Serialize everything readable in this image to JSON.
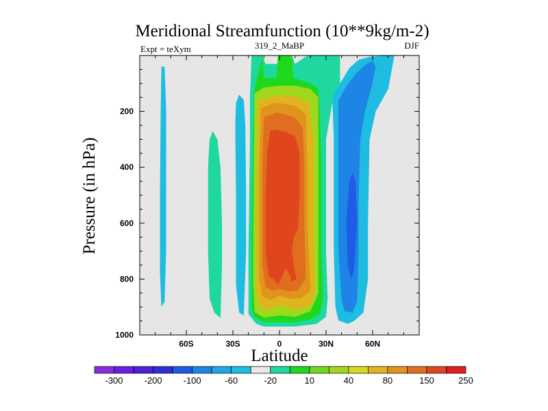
{
  "chart_data": {
    "type": "contour",
    "title": "Meridional Streamfunction (10**9kg/m-2)",
    "left_string": "Expt = teXym",
    "center_string": "319_2_MaBP",
    "right_string": "DJF",
    "xlabel": "Latitude",
    "ylabel": "Pressure (in hPa)",
    "x_range": [
      -90,
      90
    ],
    "y_range": [
      1000,
      0
    ],
    "y_direction": "inverted",
    "x_ticks": [
      {
        "value": -60,
        "label": "60S"
      },
      {
        "value": -30,
        "label": "30S"
      },
      {
        "value": 0,
        "label": "0"
      },
      {
        "value": 30,
        "label": "30N"
      },
      {
        "value": 60,
        "label": "60N"
      }
    ],
    "y_ticks": [
      {
        "value": 200,
        "label": "200"
      },
      {
        "value": 400,
        "label": "400"
      },
      {
        "value": 600,
        "label": "600"
      },
      {
        "value": 800,
        "label": "800"
      },
      {
        "value": 1000,
        "label": "1000"
      }
    ],
    "background_color": "#e6e6e6",
    "colorbar": {
      "colors": [
        "#8a2be2",
        "#6a1ee6",
        "#4f1fe0",
        "#2a2fd8",
        "#1e5ce6",
        "#1e84e6",
        "#1ea8e6",
        "#1ebce0",
        "#e8e8e8",
        "#1ed8a0",
        "#1ed81e",
        "#6ed81e",
        "#a0d81e",
        "#d8d81e",
        "#e0b41e",
        "#e0941e",
        "#e06e1e",
        "#e0461e",
        "#e01e1e"
      ],
      "labels": [
        "-300",
        "-200",
        "-100",
        "-60",
        "-20",
        "10",
        "40",
        "80",
        "150",
        "250"
      ]
    },
    "filled_regions": [
      {
        "level": "-20",
        "color": "#1ebce0",
        "polygon": [
          [
            -76,
            40
          ],
          [
            -74,
            40
          ],
          [
            -73,
            200
          ],
          [
            -73,
            500
          ],
          [
            -73,
            700
          ],
          [
            -74,
            880
          ],
          [
            -76,
            900
          ],
          [
            -77,
            780
          ],
          [
            -77,
            500
          ],
          [
            -76.5,
            200
          ]
        ]
      },
      {
        "level": "10",
        "color": "#1ed8a0",
        "polygon": [
          [
            -43,
            270
          ],
          [
            -40,
            300
          ],
          [
            -38,
            400
          ],
          [
            -37,
            600
          ],
          [
            -37,
            750
          ],
          [
            -38,
            940
          ],
          [
            -42,
            920
          ],
          [
            -45,
            870
          ],
          [
            -46,
            700
          ],
          [
            -46,
            400
          ],
          [
            -45,
            300
          ]
        ]
      },
      {
        "level": "-20",
        "color": "#1ebce0",
        "polygon": [
          [
            -26,
            140
          ],
          [
            -23,
            160
          ],
          [
            -22,
            250
          ],
          [
            -21.5,
            500
          ],
          [
            -21.5,
            700
          ],
          [
            -23,
            930
          ],
          [
            -26,
            920
          ],
          [
            -28,
            820
          ],
          [
            -28,
            500
          ],
          [
            -28.5,
            250
          ],
          [
            -28,
            170
          ]
        ]
      },
      {
        "level": "10",
        "color": "#1ed8a0",
        "polygon": [
          [
            -18,
            0
          ],
          [
            -11,
            0
          ],
          [
            -9,
            30
          ],
          [
            3,
            30
          ],
          [
            5,
            0
          ],
          [
            8,
            0
          ],
          [
            10,
            30
          ],
          [
            18,
            0
          ],
          [
            39,
            0
          ],
          [
            39,
            150
          ],
          [
            34,
            170
          ],
          [
            30,
            300
          ],
          [
            30,
            700
          ],
          [
            31,
            870
          ],
          [
            30,
            935
          ],
          [
            24,
            960
          ],
          [
            10,
            970
          ],
          [
            -10,
            970
          ],
          [
            -15,
            960
          ],
          [
            -20,
            925
          ],
          [
            -20,
            700
          ],
          [
            -19,
            300
          ],
          [
            -19,
            150
          ]
        ]
      },
      {
        "level": "40",
        "color": "#1ed81e",
        "polygon": [
          [
            -11,
            0
          ],
          [
            -10,
            80
          ],
          [
            -2,
            80
          ],
          [
            -1,
            0
          ],
          [
            8,
            0
          ],
          [
            9,
            80
          ],
          [
            20,
            100
          ],
          [
            25,
            120
          ],
          [
            26,
            200
          ],
          [
            27,
            400
          ],
          [
            27,
            700
          ],
          [
            28,
            870
          ],
          [
            26,
            925
          ],
          [
            20,
            945
          ],
          [
            10,
            955
          ],
          [
            -10,
            955
          ],
          [
            -16,
            935
          ],
          [
            -18,
            905
          ],
          [
            -18,
            700
          ],
          [
            -17,
            300
          ],
          [
            -16,
            120
          ]
        ]
      },
      {
        "level": "80",
        "color": "#a0d81e",
        "polygon": [
          [
            -16,
            135
          ],
          [
            -10,
            115
          ],
          [
            0,
            108
          ],
          [
            10,
            108
          ],
          [
            20,
            120
          ],
          [
            25,
            150
          ],
          [
            25,
            400
          ],
          [
            25,
            850
          ],
          [
            20,
            915
          ],
          [
            10,
            935
          ],
          [
            0,
            930
          ],
          [
            -10,
            938
          ],
          [
            -16,
            918
          ],
          [
            -17,
            800
          ],
          [
            -16.5,
            400
          ]
        ]
      },
      {
        "level": "150",
        "color": "#e0b41e",
        "polygon": [
          [
            -14,
            160
          ],
          [
            -6,
            150
          ],
          [
            0,
            145
          ],
          [
            10,
            145
          ],
          [
            19,
            170
          ],
          [
            22,
            300
          ],
          [
            22,
            600
          ],
          [
            23,
            850
          ],
          [
            20,
            895
          ],
          [
            10,
            910
          ],
          [
            5,
            898
          ],
          [
            0,
            895
          ],
          [
            -8,
            910
          ],
          [
            -13,
            895
          ],
          [
            -15,
            850
          ],
          [
            -14.5,
            400
          ]
        ]
      },
      {
        "level": "200",
        "color": "#e0941e",
        "polygon": [
          [
            -12,
            190
          ],
          [
            -4,
            170
          ],
          [
            0,
            170
          ],
          [
            10,
            180
          ],
          [
            17,
            210
          ],
          [
            18,
            400
          ],
          [
            18,
            600
          ],
          [
            20,
            840
          ],
          [
            14,
            868
          ],
          [
            8,
            872
          ],
          [
            0,
            860
          ],
          [
            -6,
            875
          ],
          [
            -11,
            862
          ],
          [
            -13,
            800
          ],
          [
            -13,
            400
          ]
        ]
      },
      {
        "level": "250",
        "color": "#e06e1e",
        "polygon": [
          [
            -10,
            220
          ],
          [
            -2,
            205
          ],
          [
            3,
            210
          ],
          [
            10,
            222
          ],
          [
            15,
            260
          ],
          [
            16,
            400
          ],
          [
            16,
            600
          ],
          [
            17,
            800
          ],
          [
            12,
            840
          ],
          [
            6,
            845
          ],
          [
            0,
            835
          ],
          [
            -5,
            840
          ],
          [
            -9,
            828
          ],
          [
            -11,
            750
          ],
          [
            -11,
            400
          ],
          [
            -10.5,
            300
          ]
        ]
      },
      {
        "level": "300",
        "color": "#e0461e",
        "polygon": [
          [
            -6,
            270
          ],
          [
            -3,
            265
          ],
          [
            0,
            268
          ],
          [
            5,
            275
          ],
          [
            10,
            290
          ],
          [
            13,
            350
          ],
          [
            13,
            500
          ],
          [
            12,
            620
          ],
          [
            9,
            650
          ],
          [
            8,
            700
          ],
          [
            10,
            780
          ],
          [
            11,
            800
          ],
          [
            8,
            810
          ],
          [
            7,
            790
          ],
          [
            4,
            760
          ],
          [
            1,
            800
          ],
          [
            -1,
            820
          ],
          [
            -4,
            800
          ],
          [
            -7,
            790
          ],
          [
            -9,
            700
          ],
          [
            -9,
            500
          ],
          [
            -8,
            350
          ]
        ]
      },
      {
        "level": "-20",
        "color": "#1ebce0",
        "polygon": [
          [
            34,
            150
          ],
          [
            39,
            100
          ],
          [
            45,
            45
          ],
          [
            51,
            15
          ],
          [
            58,
            5
          ],
          [
            68,
            0
          ],
          [
            74,
            0
          ],
          [
            70,
            120
          ],
          [
            62,
            200
          ],
          [
            58,
            300
          ],
          [
            57,
            600
          ],
          [
            57,
            800
          ],
          [
            54,
            920
          ],
          [
            48,
            950
          ],
          [
            44,
            960
          ],
          [
            38,
            948
          ],
          [
            36,
            900
          ],
          [
            35,
            700
          ],
          [
            35,
            300
          ]
        ]
      },
      {
        "level": "-60",
        "color": "#1e84e6",
        "polygon": [
          [
            38,
            160
          ],
          [
            43,
            110
          ],
          [
            50,
            60
          ],
          [
            56,
            30
          ],
          [
            60,
            20
          ],
          [
            62,
            40
          ],
          [
            59,
            120
          ],
          [
            55,
            200
          ],
          [
            52,
            300
          ],
          [
            51,
            500
          ],
          [
            51,
            700
          ],
          [
            50,
            880
          ],
          [
            47,
            920
          ],
          [
            42,
            915
          ],
          [
            40,
            880
          ],
          [
            38,
            700
          ],
          [
            38,
            300
          ]
        ]
      },
      {
        "level": "-100",
        "color": "#1e5ce6",
        "polygon": [
          [
            45,
            450
          ],
          [
            47,
            420
          ],
          [
            49,
            450
          ],
          [
            50,
            600
          ],
          [
            48,
            770
          ],
          [
            46,
            800
          ],
          [
            44,
            750
          ],
          [
            43,
            600
          ]
        ]
      }
    ]
  }
}
